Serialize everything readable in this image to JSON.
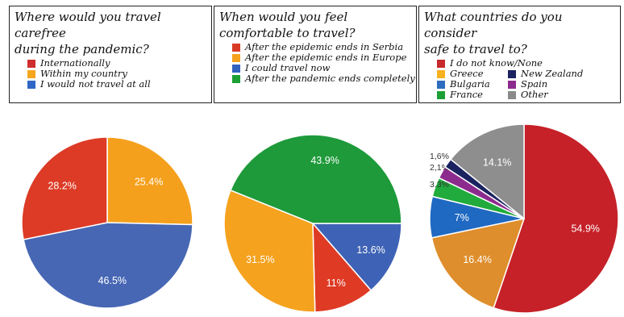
{
  "colors": {
    "red": "#c6282b",
    "orange": "#f49c1d",
    "blue": "#2e6cc0",
    "green": "#1c9f34",
    "navy": "#1b2260",
    "purple": "#8d2a8d",
    "gray": "#8a8a8a"
  },
  "legend_panels": [
    {
      "title_lines": [
        "Where would you travel carefree",
        "during the pandemic?"
      ],
      "entries": [
        {
          "label": "Internationally",
          "color": "#cf2e2e"
        },
        {
          "label": "Within my country",
          "color": "#f5a61d"
        },
        {
          "label": "I would not travel at all",
          "color": "#2f67c7"
        }
      ]
    },
    {
      "title_lines": [
        "When would you feel",
        "comfortable to travel?"
      ],
      "entries": [
        {
          "label": "After the epidemic ends in Serbia",
          "color": "#d93a25"
        },
        {
          "label": "After the epidemic ends in Europe",
          "color": "#f5a21f"
        },
        {
          "label": "I could travel now",
          "color": "#3262bf"
        },
        {
          "label": "After the pandemic ends completely",
          "color": "#1c9f34"
        }
      ]
    },
    {
      "title_lines": [
        "What countries do you consider",
        "safe to travel to?"
      ],
      "entries": [
        {
          "label": "I do not know/None",
          "color": "#c6282b"
        },
        {
          "label": "Greece",
          "color": "#f5b21d"
        },
        {
          "label": "New Zealand",
          "color": "#1b2260"
        },
        {
          "label": "Bulgaria",
          "color": "#2e6cc0"
        },
        {
          "label": "Spain",
          "color": "#8d2a8d"
        },
        {
          "label": "France",
          "color": "#1c9f34"
        },
        {
          "label": "Other",
          "color": "#8a8a8a"
        }
      ]
    }
  ],
  "chart_data": [
    {
      "type": "pie",
      "title": "Where would you travel carefree during the pandemic?",
      "slices": [
        {
          "label": "Within my country",
          "value": 25.4,
          "display": "25.4%",
          "color": "#f5a01c"
        },
        {
          "label": "I would not travel at all",
          "value": 46.5,
          "display": "46.5%",
          "color": "#4767b4"
        },
        {
          "label": "Internationally",
          "value": 28.2,
          "display": "28.2%",
          "color": "#dd3b26"
        }
      ]
    },
    {
      "type": "pie",
      "title": "When would you feel comfortable to travel?",
      "slices": [
        {
          "label": "I could travel now",
          "value": 13.6,
          "display": "13.6%",
          "color": "#3e62b5"
        },
        {
          "label": "After the epidemic ends in Serbia",
          "value": 11.0,
          "display": "11%",
          "color": "#de3a24"
        },
        {
          "label": "After the epidemic ends in Europe",
          "value": 31.5,
          "display": "31.5%",
          "color": "#f5a21f"
        },
        {
          "label": "After the pandemic ends completely",
          "value": 43.9,
          "display": "43.9%",
          "color": "#1e9a3a"
        }
      ]
    },
    {
      "type": "pie",
      "title": "What countries do you consider safe to travel to?",
      "slices": [
        {
          "label": "I do not know/None",
          "value": 54.9,
          "display": "54.9%",
          "color": "#c62128"
        },
        {
          "label": "Greece",
          "value": 16.4,
          "display": "16.4%",
          "color": "#de8e2c"
        },
        {
          "label": "Bulgaria",
          "value": 7.0,
          "display": "7%",
          "color": "#1f69c2"
        },
        {
          "label": "France",
          "value": 3.3,
          "display": "3.3%",
          "color": "#20ab3c"
        },
        {
          "label": "Spain",
          "value": 2.1,
          "display": "2,1%",
          "color": "#8d2a8d"
        },
        {
          "label": "New Zealand",
          "value": 1.6,
          "display": "1,6%",
          "color": "#1b2260"
        },
        {
          "label": "Other",
          "value": 14.1,
          "display": "14.1%",
          "color": "#8e8e8e"
        }
      ]
    }
  ]
}
